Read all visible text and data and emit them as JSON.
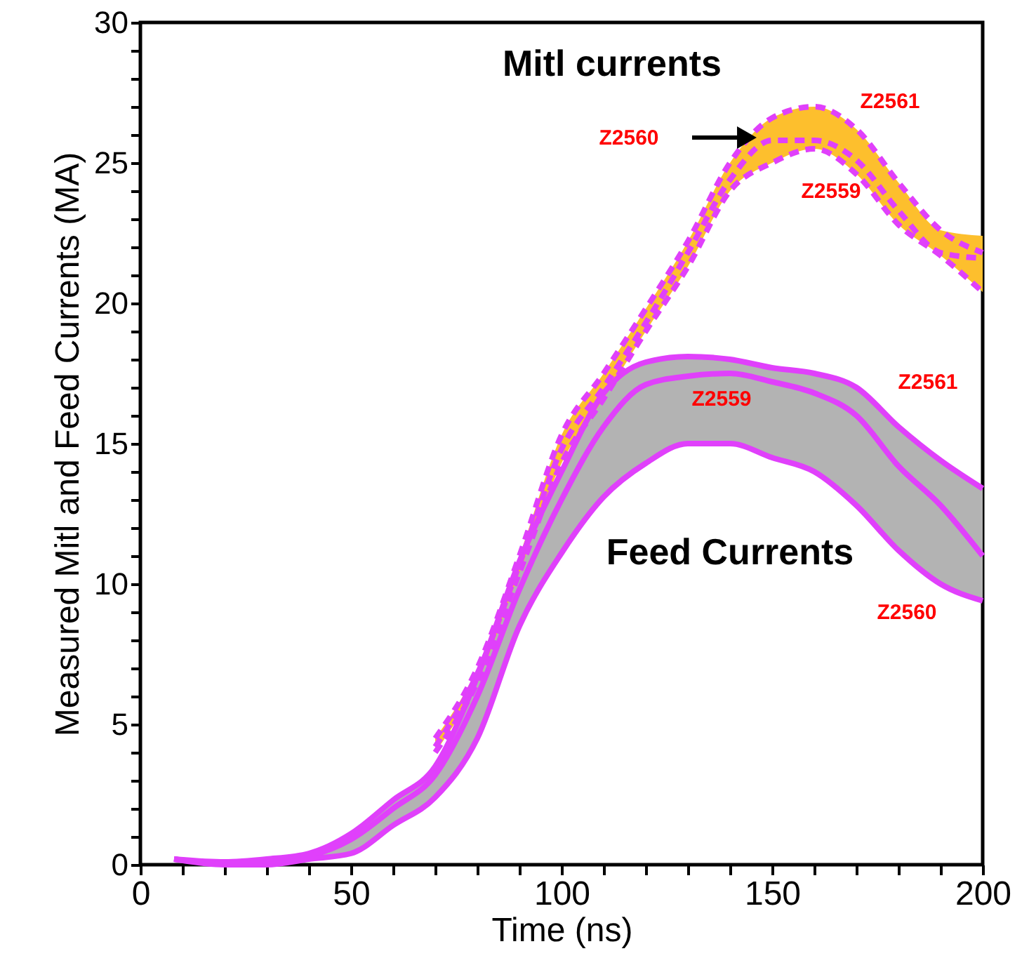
{
  "chart_data": {
    "type": "line",
    "xlabel": "Time (ns)",
    "ylabel": "Measured Mitl and Feed Currents (MA)",
    "xlim": [
      0,
      200
    ],
    "ylim": [
      0,
      30
    ],
    "xticks": [
      0,
      {
        "value": 10,
        "label": null
      },
      {
        "value": 20,
        "label": null
      },
      {
        "value": 30,
        "label": null
      },
      {
        "value": 40,
        "label": null
      },
      50,
      {
        "value": 60,
        "label": null
      },
      {
        "value": 70,
        "label": null
      },
      {
        "value": 80,
        "label": null
      },
      {
        "value": 90,
        "label": null
      },
      100,
      {
        "value": 110,
        "label": null
      },
      {
        "value": 120,
        "label": null
      },
      {
        "value": 130,
        "label": null
      },
      {
        "value": 140,
        "label": null
      },
      150,
      {
        "value": 160,
        "label": null
      },
      {
        "value": 170,
        "label": null
      },
      {
        "value": 180,
        "label": null
      },
      {
        "value": 190,
        "label": null
      },
      200
    ],
    "yticks": [
      0,
      {
        "value": 1,
        "label": null
      },
      {
        "value": 2,
        "label": null
      },
      {
        "value": 3,
        "label": null
      },
      {
        "value": 4,
        "label": null
      },
      5,
      {
        "value": 6,
        "label": null
      },
      {
        "value": 7,
        "label": null
      },
      {
        "value": 8,
        "label": null
      },
      {
        "value": 9,
        "label": null
      },
      10,
      {
        "value": 11,
        "label": null
      },
      {
        "value": 12,
        "label": null
      },
      {
        "value": 13,
        "label": null
      },
      {
        "value": 14,
        "label": null
      },
      15,
      {
        "value": 16,
        "label": null
      },
      {
        "value": 17,
        "label": null
      },
      {
        "value": 18,
        "label": null
      },
      {
        "value": 19,
        "label": null
      },
      20,
      {
        "value": 21,
        "label": null
      },
      {
        "value": 22,
        "label": null
      },
      {
        "value": 23,
        "label": null
      },
      {
        "value": 24,
        "label": null
      },
      25,
      {
        "value": 26,
        "label": null
      },
      {
        "value": 27,
        "label": null
      },
      {
        "value": 28,
        "label": null
      },
      {
        "value": 29,
        "label": null
      },
      30
    ],
    "grid": false,
    "marker": "none",
    "series": [
      {
        "color": "#e040fb",
        "line_style": "solid",
        "x": [
          8,
          20,
          30,
          40,
          50,
          60,
          70,
          80,
          90,
          100,
          110,
          120,
          130,
          140,
          150,
          160,
          170,
          180,
          190,
          200
        ],
        "values": [
          0.2,
          0.1,
          0.2,
          0.4,
          1.1,
          2.3,
          3.5,
          6.7,
          10.8,
          14.0,
          16.8,
          17.9,
          18.1,
          18.0,
          17.7,
          17.5,
          17.0,
          15.6,
          14.4,
          13.4
        ]
      },
      {
        "color": "#e040fb",
        "line_style": "solid",
        "x": [
          8,
          20,
          30,
          40,
          50,
          60,
          70,
          80,
          90,
          100,
          110,
          120,
          130,
          140,
          150,
          160,
          170,
          180,
          190,
          200
        ],
        "values": [
          0.2,
          0.05,
          0.1,
          0.3,
          0.9,
          2.0,
          3.2,
          6.0,
          9.8,
          13.0,
          15.6,
          17.1,
          17.4,
          17.5,
          17.2,
          16.8,
          16.0,
          14.2,
          12.8,
          11.0
        ],
        "lower": [
          0.2,
          0.0,
          0.0,
          0.2,
          0.4,
          1.4,
          2.4,
          4.5,
          8.5,
          11.1,
          13.1,
          14.3,
          15.0,
          15.0,
          14.5,
          14.0,
          12.8,
          11.2,
          10.0,
          9.4
        ],
        "upper": [
          0.2,
          0.1,
          0.2,
          0.4,
          1.1,
          2.3,
          3.5,
          6.7,
          10.8,
          14.0,
          16.8,
          17.9,
          18.1,
          18.0,
          17.7,
          17.5,
          17.0,
          15.6,
          14.4,
          13.4
        ]
      },
      {
        "color": "#e040fb",
        "line_style": "solid",
        "x": [
          8,
          20,
          30,
          40,
          50,
          60,
          70,
          80,
          90,
          100,
          110,
          120,
          130,
          140,
          150,
          160,
          170,
          180,
          190,
          200
        ],
        "values": [
          0.2,
          0.0,
          0.0,
          0.2,
          0.4,
          1.4,
          2.4,
          4.5,
          8.5,
          11.1,
          13.1,
          14.3,
          15.0,
          15.0,
          14.5,
          14.0,
          12.8,
          11.2,
          10.0,
          9.4
        ]
      },
      {
        "color": "#e040fb",
        "line_style": "dashed",
        "x": [
          70,
          80,
          90,
          100,
          110,
          120,
          130,
          140,
          150,
          160,
          170,
          180,
          190,
          200
        ],
        "values": [
          4.5,
          7.0,
          11.0,
          15.3,
          17.5,
          19.8,
          22.2,
          25.0,
          26.6,
          27.0,
          26.2,
          24.3,
          22.6,
          21.8
        ]
      },
      {
        "color": "#e040fb",
        "line_style": "dashed",
        "x": [
          70,
          80,
          90,
          100,
          110,
          120,
          130,
          140,
          150,
          160,
          170,
          180,
          190,
          200
        ],
        "values": [
          4.2,
          6.8,
          10.7,
          14.8,
          17.0,
          19.3,
          21.8,
          24.4,
          25.8,
          25.8,
          25.1,
          23.3,
          21.8,
          21.6
        ],
        "lower": [
          4.0,
          6.5,
          10.4,
          14.3,
          16.6,
          19.0,
          21.3,
          24.0,
          25.0,
          25.5,
          24.6,
          22.8,
          21.7,
          20.4
        ],
        "upper": [
          4.5,
          7.0,
          11.0,
          15.3,
          17.5,
          19.8,
          22.2,
          25.0,
          26.6,
          27.0,
          26.2,
          24.3,
          22.6,
          22.4
        ]
      },
      {
        "color": "#e040fb",
        "line_style": "dashed",
        "x": [
          70,
          80,
          90,
          100,
          110,
          120,
          130,
          140,
          150,
          160,
          170,
          180,
          190,
          200
        ],
        "values": [
          4.0,
          6.5,
          10.4,
          14.3,
          16.6,
          19.0,
          21.3,
          24.0,
          25.0,
          25.5,
          24.6,
          22.8,
          21.7,
          20.4
        ]
      }
    ],
    "annotations": [
      "Mitl currents",
      "Feed Currents",
      "Z2561",
      "Z2560",
      "Z2559",
      "Z2561",
      "Z2559",
      "Z2560"
    ]
  }
}
